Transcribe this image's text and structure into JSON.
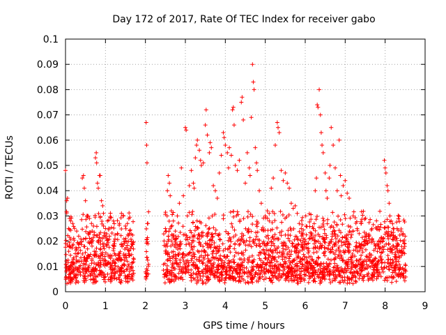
{
  "chart_data": {
    "type": "scatter",
    "title": "Day 172 of 2017, Rate Of TEC Index for receiver gabo",
    "xlabel": "GPS time / hours",
    "ylabel": "ROTI / TECUs",
    "xlim": [
      0,
      9
    ],
    "ylim": [
      0,
      0.1
    ],
    "xticks": [
      "0",
      "1",
      "2",
      "3",
      "4",
      "5",
      "6",
      "7",
      "8",
      "9"
    ],
    "yticks": [
      "0",
      "0.01",
      "0.02",
      "0.03",
      "0.04",
      "0.05",
      "0.06",
      "0.07",
      "0.08",
      "0.09",
      "0.1"
    ],
    "grid": true,
    "marker": "+",
    "color": "#ff0000",
    "series": [
      {
        "name": "ROTI",
        "points": [
          [
            0.0,
            0.048
          ],
          [
            0.03,
            0.036
          ],
          [
            0.05,
            0.037
          ],
          [
            0.08,
            0.025
          ],
          [
            0.1,
            0.029
          ],
          [
            0.13,
            0.028
          ],
          [
            0.18,
            0.027
          ],
          [
            0.28,
            0.024
          ],
          [
            0.33,
            0.022
          ],
          [
            0.42,
            0.045
          ],
          [
            0.45,
            0.046
          ],
          [
            0.47,
            0.041
          ],
          [
            0.5,
            0.036
          ],
          [
            0.55,
            0.03
          ],
          [
            0.6,
            0.029
          ],
          [
            0.65,
            0.027
          ],
          [
            0.7,
            0.026
          ],
          [
            0.75,
            0.053
          ],
          [
            0.77,
            0.055
          ],
          [
            0.78,
            0.051
          ],
          [
            0.8,
            0.043
          ],
          [
            0.82,
            0.041
          ],
          [
            0.85,
            0.046
          ],
          [
            0.87,
            0.046
          ],
          [
            0.9,
            0.036
          ],
          [
            0.93,
            0.034
          ],
          [
            0.95,
            0.031
          ],
          [
            1.0,
            0.025
          ],
          [
            1.05,
            0.028
          ],
          [
            1.1,
            0.022
          ],
          [
            1.2,
            0.028
          ],
          [
            1.3,
            0.023
          ],
          [
            1.35,
            0.027
          ],
          [
            1.4,
            0.031
          ],
          [
            1.45,
            0.03
          ],
          [
            1.5,
            0.026
          ],
          [
            1.55,
            0.027
          ],
          [
            1.6,
            0.023
          ],
          [
            1.65,
            0.018
          ],
          [
            2.02,
            0.067
          ],
          [
            2.03,
            0.058
          ],
          [
            2.04,
            0.051
          ],
          [
            2.05,
            0.027
          ],
          [
            2.06,
            0.027
          ],
          [
            2.5,
            0.025
          ],
          [
            2.52,
            0.024
          ],
          [
            2.55,
            0.04
          ],
          [
            2.57,
            0.046
          ],
          [
            2.6,
            0.043
          ],
          [
            2.62,
            0.038
          ],
          [
            2.65,
            0.032
          ],
          [
            2.7,
            0.028
          ],
          [
            2.75,
            0.024
          ],
          [
            2.8,
            0.03
          ],
          [
            2.85,
            0.035
          ],
          [
            2.9,
            0.049
          ],
          [
            2.95,
            0.038
          ],
          [
            3.0,
            0.065
          ],
          [
            3.02,
            0.064
          ],
          [
            3.05,
            0.03
          ],
          [
            3.1,
            0.042
          ],
          [
            3.15,
            0.048
          ],
          [
            3.2,
            0.043
          ],
          [
            3.22,
            0.041
          ],
          [
            3.25,
            0.053
          ],
          [
            3.28,
            0.058
          ],
          [
            3.3,
            0.06
          ],
          [
            3.35,
            0.056
          ],
          [
            3.38,
            0.052
          ],
          [
            3.4,
            0.05
          ],
          [
            3.45,
            0.051
          ],
          [
            3.5,
            0.066
          ],
          [
            3.52,
            0.072
          ],
          [
            3.55,
            0.062
          ],
          [
            3.6,
            0.055
          ],
          [
            3.62,
            0.059
          ],
          [
            3.65,
            0.057
          ],
          [
            3.7,
            0.042
          ],
          [
            3.75,
            0.04
          ],
          [
            3.8,
            0.037
          ],
          [
            3.85,
            0.047
          ],
          [
            3.9,
            0.054
          ],
          [
            3.95,
            0.063
          ],
          [
            3.97,
            0.061
          ],
          [
            4.0,
            0.058
          ],
          [
            4.05,
            0.055
          ],
          [
            4.08,
            0.049
          ],
          [
            4.1,
            0.057
          ],
          [
            4.15,
            0.054
          ],
          [
            4.18,
            0.072
          ],
          [
            4.2,
            0.073
          ],
          [
            4.22,
            0.066
          ],
          [
            4.25,
            0.05
          ],
          [
            4.3,
            0.048
          ],
          [
            4.35,
            0.052
          ],
          [
            4.4,
            0.075
          ],
          [
            4.42,
            0.077
          ],
          [
            4.45,
            0.068
          ],
          [
            4.5,
            0.043
          ],
          [
            4.55,
            0.055
          ],
          [
            4.6,
            0.049
          ],
          [
            4.62,
            0.046
          ],
          [
            4.65,
            0.069
          ],
          [
            4.68,
            0.09
          ],
          [
            4.7,
            0.083
          ],
          [
            4.72,
            0.08
          ],
          [
            4.75,
            0.057
          ],
          [
            4.78,
            0.051
          ],
          [
            4.8,
            0.048
          ],
          [
            4.85,
            0.04
          ],
          [
            4.9,
            0.035
          ],
          [
            5.0,
            0.03
          ],
          [
            5.05,
            0.032
          ],
          [
            5.1,
            0.028
          ],
          [
            5.15,
            0.041
          ],
          [
            5.2,
            0.045
          ],
          [
            5.25,
            0.058
          ],
          [
            5.3,
            0.067
          ],
          [
            5.32,
            0.065
          ],
          [
            5.35,
            0.063
          ],
          [
            5.4,
            0.048
          ],
          [
            5.45,
            0.044
          ],
          [
            5.5,
            0.047
          ],
          [
            5.55,
            0.043
          ],
          [
            5.6,
            0.041
          ],
          [
            5.65,
            0.035
          ],
          [
            5.7,
            0.033
          ],
          [
            5.75,
            0.034
          ],
          [
            5.8,
            0.031
          ],
          [
            5.85,
            0.027
          ],
          [
            5.9,
            0.025
          ],
          [
            5.95,
            0.021
          ],
          [
            6.0,
            0.02
          ],
          [
            6.1,
            0.021
          ],
          [
            6.2,
            0.025
          ],
          [
            6.25,
            0.04
          ],
          [
            6.28,
            0.045
          ],
          [
            6.3,
            0.074
          ],
          [
            6.32,
            0.073
          ],
          [
            6.35,
            0.08
          ],
          [
            6.38,
            0.07
          ],
          [
            6.4,
            0.063
          ],
          [
            6.42,
            0.058
          ],
          [
            6.45,
            0.055
          ],
          [
            6.5,
            0.047
          ],
          [
            6.52,
            0.04
          ],
          [
            6.55,
            0.037
          ],
          [
            6.6,
            0.045
          ],
          [
            6.62,
            0.05
          ],
          [
            6.65,
            0.065
          ],
          [
            6.7,
            0.058
          ],
          [
            6.75,
            0.049
          ],
          [
            6.8,
            0.04
          ],
          [
            6.85,
            0.06
          ],
          [
            6.88,
            0.046
          ],
          [
            6.9,
            0.038
          ],
          [
            6.95,
            0.042
          ],
          [
            7.0,
            0.044
          ],
          [
            7.05,
            0.039
          ],
          [
            7.1,
            0.037
          ],
          [
            7.2,
            0.03
          ],
          [
            7.3,
            0.025
          ],
          [
            7.35,
            0.023
          ],
          [
            7.5,
            0.022
          ],
          [
            7.6,
            0.021
          ],
          [
            7.7,
            0.02
          ],
          [
            7.8,
            0.019
          ],
          [
            7.9,
            0.021
          ],
          [
            7.98,
            0.052
          ],
          [
            8.0,
            0.049
          ],
          [
            8.02,
            0.047
          ],
          [
            8.05,
            0.042
          ],
          [
            8.07,
            0.04
          ],
          [
            8.1,
            0.035
          ],
          [
            8.12,
            0.03
          ],
          [
            8.15,
            0.028
          ],
          [
            8.2,
            0.025
          ],
          [
            8.3,
            0.025
          ],
          [
            8.4,
            0.024
          ],
          [
            8.45,
            0.023
          ],
          [
            8.5,
            0.022
          ]
        ]
      }
    ],
    "dense_band": {
      "note": "dense cloud of small ROTI values (roughly 0.003 to 0.025) across covered hours",
      "segments": [
        [
          0.0,
          1.72
        ],
        [
          2.0,
          2.08
        ],
        [
          2.45,
          8.52
        ]
      ],
      "ymin": 0.003,
      "ymax": 0.025
    }
  }
}
